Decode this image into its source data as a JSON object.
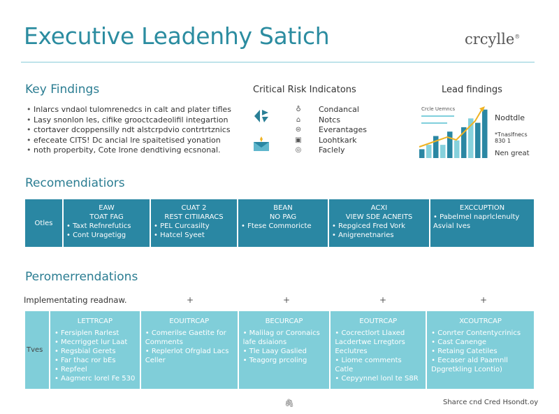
{
  "header": {
    "title": "Executive Leadenhy  Satich",
    "logo": "crcylle"
  },
  "key_findings": {
    "heading": "Key Findings",
    "items": [
      "Inlarcs vndaol tulomrenedcs in calt and plater tifles",
      "Lasy snonlon les, cifike grooctcadeolifil integartion",
      "ctortaver dcoppensilly ndt alstcrpdvio contrtrtznics",
      "efeceate CITS! Dc ancial lre spaitetised yonation",
      "noth properbity, Cote lrone dendtiving ecsnonal."
    ]
  },
  "critical_risk": {
    "heading": "Critical Risk Indicatons",
    "items": [
      {
        "icon": "bell-icon",
        "label": "Condancal"
      },
      {
        "icon": "lock-icon",
        "label": "Notcs"
      },
      {
        "icon": "device-icon",
        "label": "Everantages"
      },
      {
        "icon": "calendar-icon",
        "label": "Loohtkark"
      },
      {
        "icon": "target-icon",
        "label": "Faclely"
      }
    ]
  },
  "lead_findings": {
    "heading": "Lead findings",
    "chart_label": "Crcle Uemncs",
    "side_labels": [
      "Nodtdle",
      "*Tnaslfnecs\n830 1",
      "Nen great"
    ]
  },
  "chart_data": {
    "type": "bar",
    "values": [
      2,
      3,
      5,
      3,
      6,
      4,
      7,
      9,
      8,
      11
    ],
    "colors": [
      "#2a87a3",
      "#86d1dc"
    ],
    "trend_color": "#f0b323",
    "title": "Crcle Uemncs"
  },
  "recommendations": {
    "heading": "Recomendiatiors",
    "row_label": "Otles",
    "columns": [
      {
        "title": "EAW\nTOAT FAG",
        "bullets": [
          "Taxt Refnrefutics",
          "Cont Uragetigg"
        ]
      },
      {
        "title": "CUAT 2\nREST CITIIARACS",
        "bullets": [
          "PEL Curcasilty",
          "Hatcel Syeet"
        ]
      },
      {
        "title": "BEAN\nNO PAG",
        "bullets": [
          "Ftese Commoricte"
        ]
      },
      {
        "title": "ACXI\nVIEW SDE ACNEITS",
        "bullets": [
          "Repgiced Fred Vork",
          "Anigrenetnaries"
        ]
      },
      {
        "title": "EXCCUPTION",
        "bullets": [
          "Pabelmel naprlclenulty Asvial Ives"
        ]
      }
    ]
  },
  "roadmap": {
    "heading": "Peromerrendations",
    "subheading": "Implementating readnaw.",
    "plus": "+",
    "row_label": "Tves",
    "columns": [
      {
        "title": "LETTRCAP",
        "bullets": [
          "Fersiplen Rarlest",
          "Mecrrigget lur Laat",
          "Regsbial Gerets",
          "Far thac ror bEs",
          "Repfeel",
          "Aagmerc lorel Fe 530"
        ]
      },
      {
        "title": "EOUITRCAP",
        "bullets": [
          "Comerilse Gaetite for Comments",
          "Replerlot Ofrglad Lacs Celler"
        ]
      },
      {
        "title": "BECURCAP",
        "bullets": [
          "Malilag or Coronaics lafe dsiaions",
          "Tle Laay Gaslied",
          "Teagorg prcoling"
        ]
      },
      {
        "title": "EOUTRCAP",
        "bullets": [
          "Cocrectlort Llaxed Lacdertwe Lrregtors Eeclutres",
          "Liome comments Catle",
          "Cepyynnel lonl te S8R"
        ]
      },
      {
        "title": "XCOUTRCAP",
        "bullets": [
          "Conrter Contentycrinics",
          "Cast Canenge",
          "Retaing Catetiles",
          "Eecaser ald Paamnll Dpgretkling Lcontio)"
        ]
      }
    ]
  },
  "footer": {
    "icon": "clip-icon",
    "text": "Sharce cnd Cred Hsondt.oy"
  }
}
